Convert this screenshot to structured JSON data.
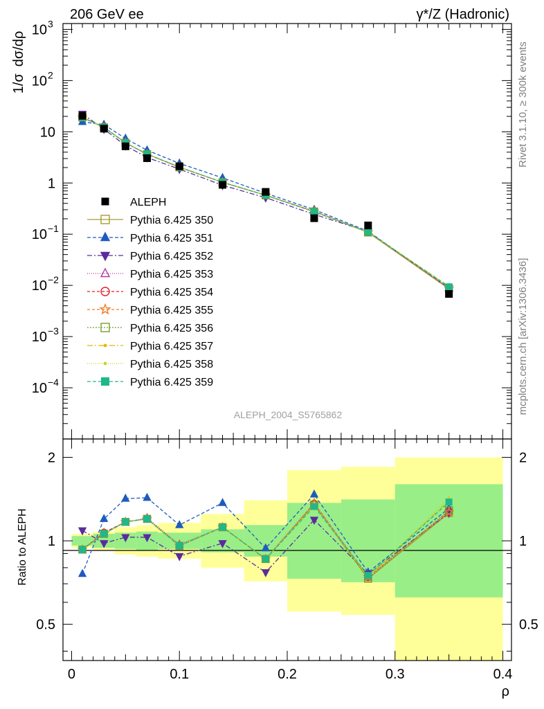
{
  "header": {
    "left": "206 GeV ee",
    "right": "γ*/Z (Hadronic)"
  },
  "side_labels": {
    "rivet": "Rivet 3.1.10, ≥ 300k events",
    "mcplots": "mcplots.cern.ch [arXiv:1306.3436]"
  },
  "analysis_id": "ALEPH_2004_S5765862",
  "chart_data": {
    "type": "scatter",
    "ylabel": "1/σ dσ/dρ",
    "ratio_ylabel": "Ratio to ALEPH",
    "xlabel": "ρ",
    "xlim": [
      -0.008,
      0.408
    ],
    "ylim": [
      1e-05,
      1300
    ],
    "yscale": "log",
    "ratio_ylim": [
      0.37,
      2.33
    ],
    "x_ticks": [
      "0",
      "0.1",
      "0.2",
      "0.3",
      "0.4"
    ],
    "ratio_ticks": [
      "0.5",
      "1",
      "2"
    ],
    "legend_position": "middle-left",
    "bin_edges": [
      0,
      0.02,
      0.04,
      0.06,
      0.08,
      0.12,
      0.16,
      0.2,
      0.25,
      0.3,
      0.4
    ],
    "x": [
      0.01,
      0.03,
      0.05,
      0.07,
      0.1,
      0.14,
      0.18,
      0.225,
      0.275,
      0.35
    ],
    "data": {
      "name": "ALEPH",
      "values": [
        20.5,
        11.5,
        5.2,
        3.05,
        2.12,
        0.92,
        0.67,
        0.205,
        0.148,
        0.0068
      ]
    },
    "uncertainty_band": {
      "inner": [
        0.04,
        0.06,
        0.07,
        0.08,
        0.07,
        0.1,
        0.14,
        0.37,
        0.41,
        0.6
      ],
      "outer": [
        0.06,
        0.08,
        0.12,
        0.14,
        0.16,
        0.25,
        0.4,
        0.8,
        0.85,
        1.0
      ]
    },
    "series": [
      {
        "name": "Pythia 6.425 350",
        "color": "#a69b33",
        "dash": "",
        "marker": "open-square",
        "ratio": [
          0.93,
          1.06,
          1.17,
          1.2,
          0.96,
          1.12,
          0.86,
          1.35,
          0.73,
          1.26
        ]
      },
      {
        "name": "Pythia 6.425 351",
        "color": "#1f5bbf",
        "dash": "5,3",
        "marker": "triangle-up",
        "ratio": [
          0.76,
          1.2,
          1.42,
          1.43,
          1.14,
          1.37,
          0.94,
          1.47,
          0.77,
          1.31
        ]
      },
      {
        "name": "Pythia 6.425 352",
        "color": "#5b2b9e",
        "dash": "7,3,2,3",
        "marker": "triangle-down",
        "ratio": [
          1.09,
          0.98,
          1.03,
          1.03,
          0.88,
          0.98,
          0.77,
          1.19,
          0.76,
          1.26
        ]
      },
      {
        "name": "Pythia 6.425 353",
        "color": "#b5359f",
        "dash": "1,2",
        "marker": "open-triangle",
        "ratio": [
          0.93,
          1.07,
          1.17,
          1.21,
          0.97,
          1.12,
          0.86,
          1.37,
          0.74,
          1.28
        ]
      },
      {
        "name": "Pythia 6.425 354",
        "color": "#dd1f28",
        "dash": "4,3",
        "marker": "open-circle",
        "ratio": [
          0.93,
          1.07,
          1.17,
          1.2,
          0.96,
          1.12,
          0.86,
          1.36,
          0.74,
          1.27
        ]
      },
      {
        "name": "Pythia 6.425 355",
        "color": "#f07b27",
        "dash": "4,3",
        "marker": "open-star",
        "ratio": [
          0.93,
          1.06,
          1.17,
          1.2,
          0.96,
          1.12,
          0.86,
          1.36,
          0.74,
          1.27
        ]
      },
      {
        "name": "Pythia 6.425 356",
        "color": "#7b9b2d",
        "dash": "2,2",
        "marker": "open-square",
        "ratio": [
          0.93,
          1.06,
          1.17,
          1.2,
          0.96,
          1.12,
          0.86,
          1.35,
          0.73,
          1.29
        ]
      },
      {
        "name": "Pythia 6.425 357",
        "color": "#e6b800",
        "dash": "8,3,2,3",
        "marker": "small-dot",
        "ratio": [
          0.93,
          1.06,
          1.17,
          1.2,
          0.96,
          1.12,
          0.86,
          1.34,
          0.74,
          1.4
        ]
      },
      {
        "name": "Pythia 6.425 358",
        "color": "#c8d41f",
        "dash": "1,2",
        "marker": "small-dot",
        "ratio": [
          0.93,
          1.06,
          1.17,
          1.2,
          0.96,
          1.12,
          0.86,
          1.34,
          0.74,
          1.43
        ]
      },
      {
        "name": "Pythia 6.425 359",
        "color": "#1fb88a",
        "dash": "5,3",
        "marker": "filled-square",
        "ratio": [
          0.93,
          1.06,
          1.17,
          1.2,
          0.96,
          1.12,
          0.86,
          1.33,
          0.75,
          1.38
        ]
      }
    ]
  }
}
